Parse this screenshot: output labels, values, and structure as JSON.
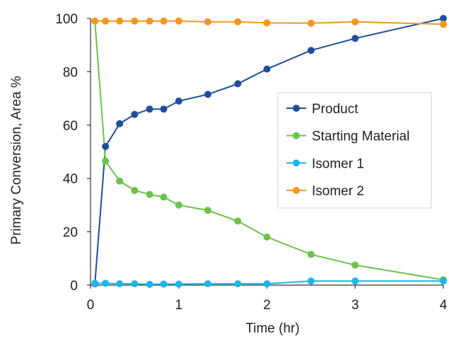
{
  "chart_data": {
    "type": "line",
    "title": "",
    "xlabel": "Time (hr)",
    "ylabel": "Primary Conversion, Area %",
    "xlim": [
      0,
      4
    ],
    "ylim": [
      0,
      100
    ],
    "xticks": [
      0,
      1,
      2,
      3,
      4
    ],
    "yticks": [
      0,
      20,
      40,
      60,
      80,
      100
    ],
    "grid": false,
    "legend_position": "center-right",
    "series": [
      {
        "name": "Product",
        "color": "#1f4e9c",
        "points": [
          [
            0.05,
            0.5
          ],
          [
            0.17,
            52
          ],
          [
            0.33,
            60.5
          ],
          [
            0.5,
            64
          ],
          [
            0.67,
            66
          ],
          [
            0.83,
            66
          ],
          [
            1.0,
            69
          ],
          [
            1.33,
            71.5
          ],
          [
            1.67,
            75.5
          ],
          [
            2.0,
            81
          ],
          [
            2.5,
            88
          ],
          [
            3.0,
            92.5
          ],
          [
            4.0,
            100
          ]
        ]
      },
      {
        "name": "Starting Material",
        "color": "#6cc24a",
        "points": [
          [
            0.05,
            99
          ],
          [
            0.17,
            46.5
          ],
          [
            0.33,
            39
          ],
          [
            0.5,
            35.5
          ],
          [
            0.67,
            34
          ],
          [
            0.83,
            33
          ],
          [
            1.0,
            30
          ],
          [
            1.33,
            28
          ],
          [
            1.67,
            24
          ],
          [
            2.0,
            18
          ],
          [
            2.5,
            11.5
          ],
          [
            3.0,
            7.5
          ],
          [
            4.0,
            2
          ]
        ]
      },
      {
        "name": "Isomer 1",
        "color": "#1fb5e8",
        "points": [
          [
            0.05,
            0.7
          ],
          [
            0.17,
            0.7
          ],
          [
            0.33,
            0.5
          ],
          [
            0.5,
            0.5
          ],
          [
            0.67,
            0.3
          ],
          [
            0.83,
            0.4
          ],
          [
            1.0,
            0.4
          ],
          [
            1.33,
            0.5
          ],
          [
            1.67,
            0.5
          ],
          [
            2.0,
            0.5
          ],
          [
            2.5,
            1.5
          ],
          [
            3.0,
            1.5
          ],
          [
            4.0,
            1.5
          ]
        ]
      },
      {
        "name": "Isomer 2",
        "color": "#f5961e",
        "points": [
          [
            0.05,
            99
          ],
          [
            0.17,
            99
          ],
          [
            0.33,
            99
          ],
          [
            0.5,
            99
          ],
          [
            0.67,
            99
          ],
          [
            0.83,
            99
          ],
          [
            1.0,
            99
          ],
          [
            1.33,
            98.7
          ],
          [
            1.67,
            98.7
          ],
          [
            2.0,
            98.3
          ],
          [
            2.5,
            98.2
          ],
          [
            3.0,
            98.7
          ],
          [
            4.0,
            97.8
          ]
        ]
      }
    ]
  }
}
